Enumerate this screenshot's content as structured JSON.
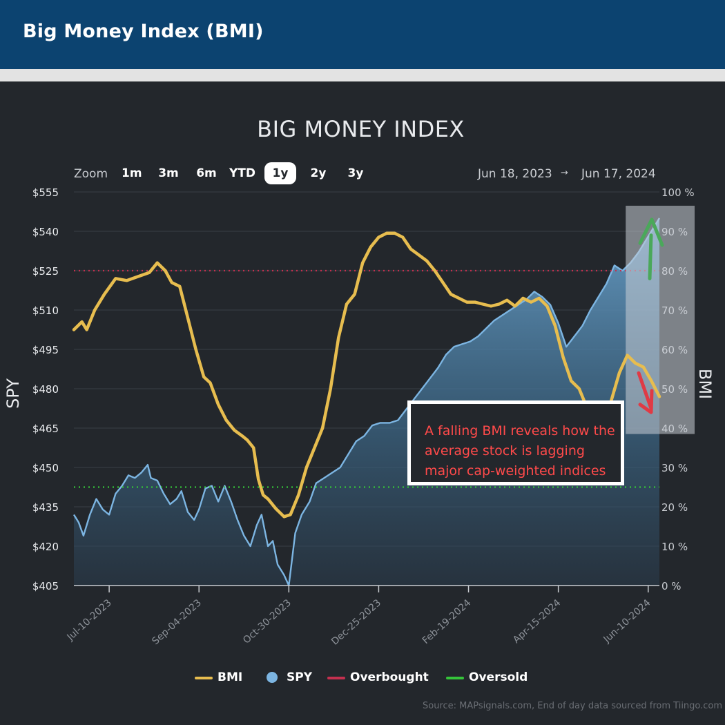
{
  "header": {
    "title": "Big Money Index (BMI)"
  },
  "zoom": {
    "label": "Zoom",
    "buttons": [
      "1m",
      "3m",
      "6m",
      "YTD",
      "1y",
      "2y",
      "3y"
    ],
    "active": "1y"
  },
  "range": {
    "from": "Jun 18, 2023",
    "arrow": "→",
    "to": "Jun 17, 2024"
  },
  "annotation": {
    "text": "A falling BMI reveals how the average stock is lagging major cap-weighted indices"
  },
  "source": "Source: MAPsignals.com, End of day data sourced from Tiingo.com",
  "colors": {
    "bmi": "#e7bd4f",
    "spy": "#7cb5e2",
    "overbought": "#c4304f",
    "oversold": "#35c43a",
    "up_arrow": "#4aa85a",
    "down_arrow": "#e03a45"
  },
  "chart_data": {
    "type": "line",
    "title": "BIG MONEY INDEX",
    "ylabel_left": "SPY",
    "ylabel_right": "BMI",
    "x_tick_labels": [
      "Jul-10-2023",
      "Sep-04-2023",
      "Oct-30-2023",
      "Dec-25-2023",
      "Feb-19-2024",
      "Apr-15-2024",
      "Jun-10-2024"
    ],
    "x_tick_dates": [
      "2023-07-10",
      "2023-09-04",
      "2023-10-30",
      "2023-12-25",
      "2024-02-19",
      "2024-04-15",
      "2024-06-10"
    ],
    "x_range": [
      "2023-06-18",
      "2024-06-17"
    ],
    "y_left_ticks": [
      "$555",
      "$540",
      "$525",
      "$510",
      "$495",
      "$480",
      "$465",
      "$450",
      "$435",
      "$420",
      "$405"
    ],
    "y_left_range": [
      405,
      555
    ],
    "y_right_ticks": [
      "100 %",
      "90 %",
      "80 %",
      "70 %",
      "60 %",
      "50 %",
      "40 %",
      "30 %",
      "20 %",
      "10 %",
      "0 %"
    ],
    "y_right_range": [
      0,
      100
    ],
    "overbought_level": 80,
    "oversold_level": 25,
    "legend": [
      "BMI",
      "SPY",
      "Overbought",
      "Oversold"
    ],
    "legend_position": "bottom",
    "grid": true,
    "series": [
      {
        "name": "BMI",
        "axis": "right",
        "points": [
          [
            "2023-06-18",
            65
          ],
          [
            "2023-06-23",
            67
          ],
          [
            "2023-06-26",
            65
          ],
          [
            "2023-07-01",
            70
          ],
          [
            "2023-07-07",
            74
          ],
          [
            "2023-07-14",
            78
          ],
          [
            "2023-07-21",
            77.5
          ],
          [
            "2023-07-28",
            78.5
          ],
          [
            "2023-08-04",
            79.5
          ],
          [
            "2023-08-09",
            82
          ],
          [
            "2023-08-14",
            80
          ],
          [
            "2023-08-18",
            77
          ],
          [
            "2023-08-23",
            76
          ],
          [
            "2023-08-28",
            68
          ],
          [
            "2023-09-02",
            60
          ],
          [
            "2023-09-07",
            53
          ],
          [
            "2023-09-11",
            51.5
          ],
          [
            "2023-09-16",
            46
          ],
          [
            "2023-09-21",
            42
          ],
          [
            "2023-09-26",
            39.5
          ],
          [
            "2023-10-01",
            38
          ],
          [
            "2023-10-04",
            37
          ],
          [
            "2023-10-08",
            35
          ],
          [
            "2023-10-11",
            27
          ],
          [
            "2023-10-14",
            23
          ],
          [
            "2023-10-17",
            22
          ],
          [
            "2023-10-22",
            19.5
          ],
          [
            "2023-10-27",
            17.5
          ],
          [
            "2023-10-31",
            18
          ],
          [
            "2023-11-05",
            23
          ],
          [
            "2023-11-10",
            30
          ],
          [
            "2023-11-15",
            35
          ],
          [
            "2023-11-20",
            40
          ],
          [
            "2023-11-25",
            50
          ],
          [
            "2023-11-30",
            63
          ],
          [
            "2023-12-05",
            71.5
          ],
          [
            "2023-12-10",
            74
          ],
          [
            "2023-12-15",
            82
          ],
          [
            "2023-12-20",
            86
          ],
          [
            "2023-12-25",
            88.5
          ],
          [
            "2023-12-30",
            89.5
          ],
          [
            "2024-01-04",
            89.5
          ],
          [
            "2024-01-09",
            88.5
          ],
          [
            "2024-01-14",
            85.5
          ],
          [
            "2024-01-19",
            84
          ],
          [
            "2024-01-24",
            82.5
          ],
          [
            "2024-01-29",
            80
          ],
          [
            "2024-02-03",
            77
          ],
          [
            "2024-02-08",
            74
          ],
          [
            "2024-02-13",
            73
          ],
          [
            "2024-02-18",
            72
          ],
          [
            "2024-02-23",
            72
          ],
          [
            "2024-02-28",
            71.5
          ],
          [
            "2024-03-04",
            71
          ],
          [
            "2024-03-09",
            71.5
          ],
          [
            "2024-03-14",
            72.5
          ],
          [
            "2024-03-19",
            71
          ],
          [
            "2024-03-24",
            73
          ],
          [
            "2024-03-29",
            72
          ],
          [
            "2024-04-03",
            73
          ],
          [
            "2024-04-08",
            71
          ],
          [
            "2024-04-13",
            66
          ],
          [
            "2024-04-18",
            58
          ],
          [
            "2024-04-23",
            52
          ],
          [
            "2024-04-28",
            50
          ],
          [
            "2024-05-03",
            45
          ],
          [
            "2024-05-08",
            43
          ],
          [
            "2024-05-13",
            43.5
          ],
          [
            "2024-05-18",
            47
          ],
          [
            "2024-05-23",
            54
          ],
          [
            "2024-05-28",
            58.5
          ],
          [
            "2024-06-02",
            56.5
          ],
          [
            "2024-06-07",
            55.5
          ],
          [
            "2024-06-12",
            52
          ],
          [
            "2024-06-17",
            48
          ]
        ]
      },
      {
        "name": "SPY",
        "axis": "left",
        "points": [
          [
            "2023-06-18",
            432
          ],
          [
            "2023-06-21",
            429
          ],
          [
            "2023-06-24",
            424
          ],
          [
            "2023-06-28",
            432
          ],
          [
            "2023-07-02",
            438
          ],
          [
            "2023-07-06",
            434
          ],
          [
            "2023-07-10",
            432
          ],
          [
            "2023-07-14",
            440
          ],
          [
            "2023-07-18",
            443
          ],
          [
            "2023-07-22",
            447
          ],
          [
            "2023-07-26",
            446
          ],
          [
            "2023-07-30",
            448
          ],
          [
            "2023-08-03",
            451
          ],
          [
            "2023-08-05",
            446
          ],
          [
            "2023-08-09",
            445
          ],
          [
            "2023-08-13",
            440
          ],
          [
            "2023-08-17",
            436
          ],
          [
            "2023-08-21",
            438
          ],
          [
            "2023-08-24",
            441
          ],
          [
            "2023-08-28",
            433
          ],
          [
            "2023-09-01",
            430
          ],
          [
            "2023-09-04",
            434
          ],
          [
            "2023-09-08",
            442
          ],
          [
            "2023-09-12",
            443
          ],
          [
            "2023-09-16",
            437
          ],
          [
            "2023-09-20",
            443
          ],
          [
            "2023-09-24",
            437
          ],
          [
            "2023-09-28",
            430
          ],
          [
            "2023-10-02",
            424
          ],
          [
            "2023-10-06",
            420
          ],
          [
            "2023-10-10",
            428
          ],
          [
            "2023-10-13",
            432
          ],
          [
            "2023-10-17",
            420
          ],
          [
            "2023-10-20",
            422
          ],
          [
            "2023-10-23",
            413
          ],
          [
            "2023-10-27",
            409
          ],
          [
            "2023-10-30",
            405
          ],
          [
            "2023-11-03",
            425
          ],
          [
            "2023-11-07",
            432
          ],
          [
            "2023-11-12",
            437
          ],
          [
            "2023-11-16",
            444
          ],
          [
            "2023-11-21",
            446
          ],
          [
            "2023-11-26",
            448
          ],
          [
            "2023-12-01",
            450
          ],
          [
            "2023-12-06",
            455
          ],
          [
            "2023-12-11",
            460
          ],
          [
            "2023-12-16",
            462
          ],
          [
            "2023-12-21",
            466
          ],
          [
            "2023-12-26",
            467
          ],
          [
            "2024-01-01",
            467
          ],
          [
            "2024-01-06",
            468
          ],
          [
            "2024-01-11",
            472
          ],
          [
            "2024-01-16",
            476
          ],
          [
            "2024-01-21",
            480
          ],
          [
            "2024-01-26",
            484
          ],
          [
            "2024-01-31",
            488
          ],
          [
            "2024-02-05",
            493
          ],
          [
            "2024-02-10",
            496
          ],
          [
            "2024-02-15",
            497
          ],
          [
            "2024-02-20",
            498
          ],
          [
            "2024-02-25",
            500
          ],
          [
            "2024-03-01",
            503
          ],
          [
            "2024-03-06",
            506
          ],
          [
            "2024-03-11",
            508
          ],
          [
            "2024-03-16",
            510
          ],
          [
            "2024-03-21",
            512
          ],
          [
            "2024-03-26",
            514
          ],
          [
            "2024-03-31",
            517
          ],
          [
            "2024-04-05",
            515
          ],
          [
            "2024-04-10",
            512
          ],
          [
            "2024-04-15",
            505
          ],
          [
            "2024-04-20",
            496
          ],
          [
            "2024-04-25",
            500
          ],
          [
            "2024-04-30",
            504
          ],
          [
            "2024-05-05",
            510
          ],
          [
            "2024-05-10",
            515
          ],
          [
            "2024-05-15",
            520
          ],
          [
            "2024-05-20",
            527
          ],
          [
            "2024-05-25",
            525
          ],
          [
            "2024-05-30",
            528
          ],
          [
            "2024-06-04",
            532
          ],
          [
            "2024-06-09",
            537
          ],
          [
            "2024-06-14",
            542
          ],
          [
            "2024-06-17",
            545
          ]
        ]
      }
    ]
  }
}
